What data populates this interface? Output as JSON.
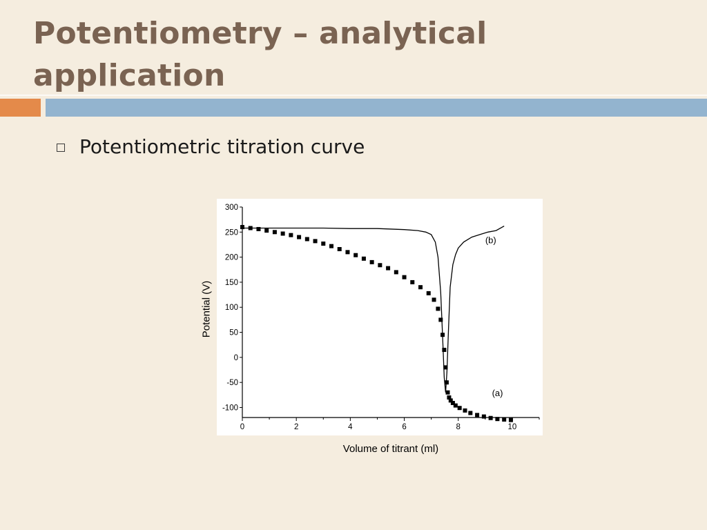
{
  "slide": {
    "title": "Potentiometry – analytical application",
    "bullet": "Potentiometric titration curve",
    "bullet_icon": "square-bullet-icon",
    "colors": {
      "background": "#f5eddf",
      "title": "#7a6352",
      "accent_orange": "#e48a4a",
      "accent_blue": "#93b4cf"
    }
  },
  "chart_data": {
    "type": "line",
    "xlabel": "Volume of titrant (ml)",
    "ylabel": "Potential (V)",
    "xlim": [
      0,
      11
    ],
    "ylim": [
      -120,
      300
    ],
    "xticks": [
      0,
      2,
      4,
      6,
      8,
      10
    ],
    "yticks": [
      300,
      250,
      200,
      150,
      100,
      50,
      0,
      -50,
      -100
    ],
    "grid": false,
    "series": [
      {
        "name": "(a)",
        "style": "square-markers",
        "color": "#000000",
        "x": [
          0,
          0.3,
          0.6,
          0.9,
          1.2,
          1.5,
          1.8,
          2.1,
          2.4,
          2.7,
          3.0,
          3.3,
          3.6,
          3.9,
          4.2,
          4.5,
          4.8,
          5.1,
          5.4,
          5.7,
          6.0,
          6.3,
          6.6,
          6.9,
          7.1,
          7.25,
          7.35,
          7.42,
          7.48,
          7.53,
          7.57,
          7.61,
          7.66,
          7.72,
          7.8,
          7.9,
          8.05,
          8.25,
          8.45,
          8.7,
          8.95,
          9.2,
          9.45,
          9.7,
          9.95
        ],
        "y": [
          260,
          258,
          256,
          253,
          250,
          247,
          244,
          240,
          236,
          232,
          227,
          222,
          216,
          210,
          204,
          197,
          190,
          184,
          178,
          170,
          160,
          150,
          140,
          128,
          115,
          97,
          75,
          45,
          15,
          -20,
          -50,
          -70,
          -80,
          -86,
          -91,
          -96,
          -101,
          -106,
          -111,
          -115,
          -118,
          -121,
          -123,
          -124,
          -125
        ]
      },
      {
        "name": "(b)",
        "style": "line",
        "color": "#000000",
        "x": [
          0,
          1,
          2,
          3,
          4,
          5,
          6,
          6.5,
          6.8,
          7.0,
          7.15,
          7.25,
          7.35,
          7.42,
          7.48,
          7.53,
          7.58,
          7.64,
          7.7,
          7.8,
          7.9,
          8.0,
          8.2,
          8.5,
          8.8,
          9.1,
          9.4,
          9.7
        ],
        "y": [
          258,
          258,
          258,
          258,
          257,
          257,
          255,
          253,
          250,
          245,
          230,
          200,
          130,
          40,
          -40,
          -70,
          -30,
          60,
          140,
          185,
          205,
          218,
          230,
          240,
          245,
          250,
          253,
          262
        ]
      }
    ],
    "annotations": [
      "(a)",
      "(b)"
    ]
  }
}
